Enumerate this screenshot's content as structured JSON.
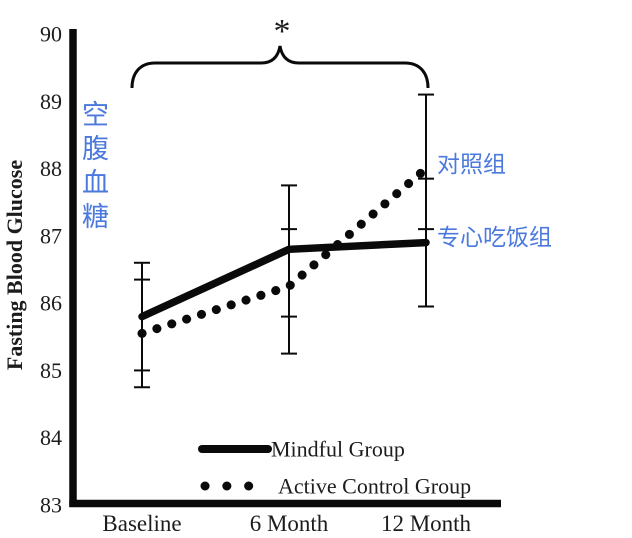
{
  "figure": {
    "title": "",
    "significance_marker": "*"
  },
  "annotations": {
    "y_axis_cn": "空腹血糖",
    "control_group_cn": "对照组",
    "mindful_group_cn": "专心吃饭组",
    "accent_blue": "#4c79dd"
  },
  "chart_data": {
    "type": "line",
    "title": "",
    "xlabel": "",
    "ylabel": "Fasting Blood Glucose",
    "categories": [
      "Baseline",
      "6 Month",
      "12 Month"
    ],
    "series": [
      {
        "name": "Mindful Group",
        "style": "solid",
        "values": [
          85.8,
          86.8,
          86.9
        ],
        "err_lo": [
          85.0,
          85.8,
          85.95
        ],
        "err_hi": [
          86.6,
          87.75,
          87.85
        ]
      },
      {
        "name": "Active Control Group",
        "style": "dotted",
        "values": [
          85.55,
          86.25,
          88.0
        ],
        "err_lo": [
          84.75,
          85.25,
          87.1
        ],
        "err_hi": [
          86.35,
          87.1,
          89.1
        ]
      }
    ],
    "ylim": [
      83,
      90
    ],
    "yticks": [
      90,
      89,
      88,
      87,
      86,
      85,
      84,
      83
    ],
    "grid": false,
    "legend_position": "inside-bottom",
    "line_color": "#0a0a0a",
    "significance": {
      "marker": "*",
      "from": "Baseline",
      "to": "12 Month"
    }
  }
}
